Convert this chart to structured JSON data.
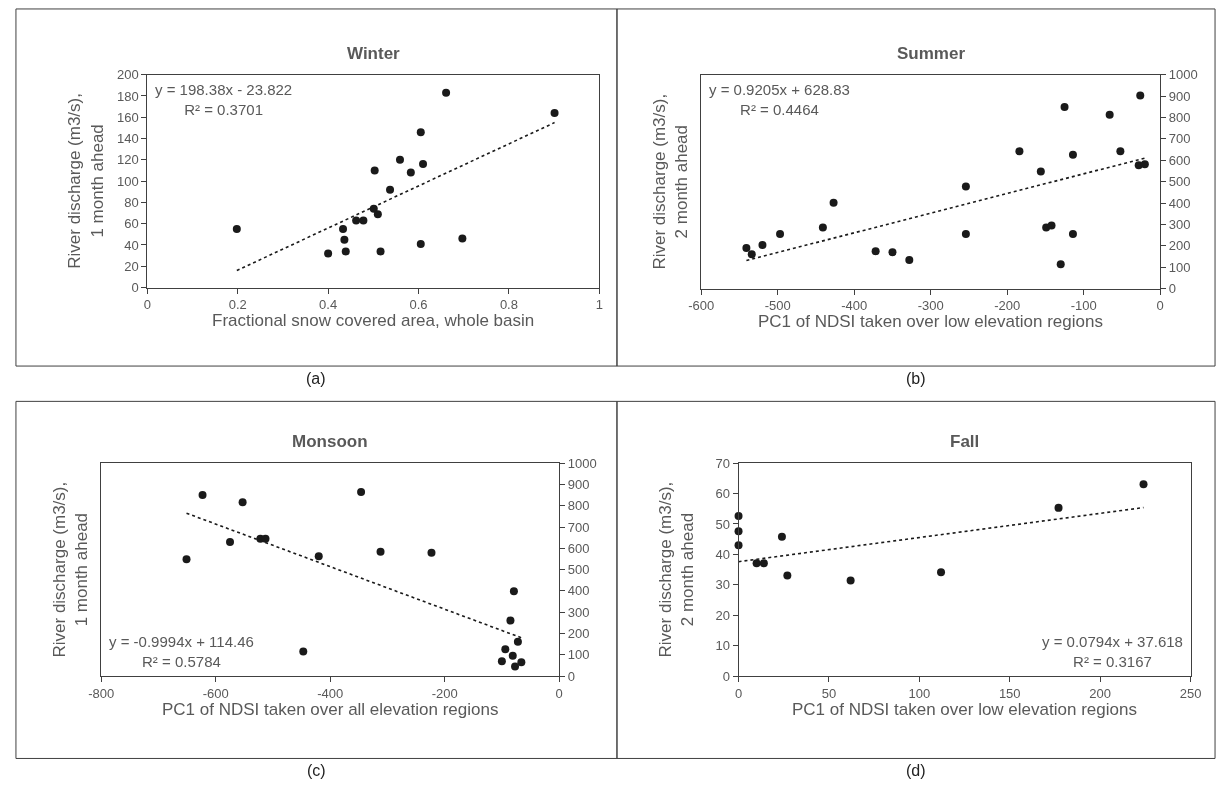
{
  "chart_data": [
    {
      "type": "scatter",
      "title": "Winter",
      "xlabel": "Fractional snow covered area, whole basin",
      "ylabel": "River discharge (m3/s),\n1 month ahead",
      "annotations": [
        "y = 198.38x - 23.822\nR² = 0.3701",
        "(a)"
      ],
      "xlim": [
        0,
        1
      ],
      "xticks": [
        0,
        0.2,
        0.4,
        0.6,
        0.8,
        1
      ],
      "ylim": [
        0,
        200
      ],
      "yticks": [
        0,
        20,
        40,
        60,
        80,
        100,
        120,
        140,
        160,
        180,
        200
      ],
      "series": [
        {
          "marker": "circle",
          "color": "#1a1a1a",
          "x": [
            0.198,
            0.4,
            0.433,
            0.436,
            0.439,
            0.462,
            0.478,
            0.501,
            0.503,
            0.51,
            0.516,
            0.537,
            0.559,
            0.583,
            0.605,
            0.605,
            0.61,
            0.661,
            0.697,
            0.901
          ],
          "values": [
            55,
            32,
            55,
            45,
            34,
            63,
            63,
            74,
            110,
            69,
            34,
            92,
            120,
            108,
            146,
            41,
            116,
            183,
            46,
            164
          ]
        },
        {
          "type": "line",
          "marker": "none",
          "line_style": "dotted",
          "color": "#1a1a1a",
          "x": [
            0.198,
            0.901
          ],
          "values": [
            16,
            155
          ]
        }
      ]
    },
    {
      "type": "scatter",
      "title": "Summer",
      "xlabel": "PC1 of NDSI taken over low elevation regions",
      "ylabel": "River discharge (m3/s),\n2 month ahead",
      "annotations": [
        "y = 0.9205x + 628.83\nR² = 0.4464",
        "(b)"
      ],
      "xlim": [
        -600,
        0
      ],
      "xticks": [
        -600,
        -500,
        -400,
        -300,
        -200,
        -100,
        0
      ],
      "y2lim": [
        0,
        1000
      ],
      "y2ticks": [
        0,
        100,
        200,
        300,
        400,
        500,
        600,
        700,
        800,
        900,
        1000
      ],
      "series": [
        {
          "marker": "circle",
          "axis": "y2",
          "color": "#1a1a1a",
          "x": [
            -541,
            -534,
            -520,
            -497,
            -441,
            -427,
            -372,
            -350,
            -328,
            -254,
            -254,
            -184,
            -156,
            -149,
            -142,
            -130,
            -125,
            -114,
            -114,
            -66,
            -52,
            -26,
            -28,
            -20
          ],
          "values": [
            190,
            160,
            204,
            255,
            285,
            401,
            175,
            170,
            134,
            477,
            255,
            642,
            547,
            285,
            295,
            114,
            849,
            626,
            255,
            813,
            642,
            903,
            577,
            581
          ]
        },
        {
          "type": "line",
          "marker": "none",
          "axis": "y2",
          "line_style": "dotted",
          "color": "#1a1a1a",
          "x": [
            -541,
            -20
          ],
          "values": [
            131,
            610
          ]
        }
      ]
    },
    {
      "type": "scatter",
      "title": "Monsoon",
      "xlabel": "PC1 of NDSI taken over all elevation regions",
      "ylabel": "River discharge (m3/s),\n1 month ahead",
      "annotations": [
        "y = -0.9994x + 114.46\nR² = 0.5784",
        "(c)"
      ],
      "xlim": [
        -800,
        0
      ],
      "xticks": [
        -800,
        -600,
        -400,
        -200,
        0
      ],
      "y2lim": [
        0,
        1000
      ],
      "y2ticks": [
        0,
        100,
        200,
        300,
        400,
        500,
        600,
        700,
        800,
        900,
        1000
      ],
      "series": [
        {
          "marker": "circle",
          "axis": "y2",
          "color": "#1a1a1a",
          "x": [
            -651,
            -623,
            -575,
            -553,
            -522,
            -513,
            -447,
            -420,
            -346,
            -312,
            -223,
            -79,
            -85,
            -72,
            -94,
            -81,
            -100,
            -66,
            -77
          ],
          "values": [
            549,
            851,
            630,
            816,
            645,
            645,
            115,
            563,
            865,
            584,
            579,
            398,
            261,
            161,
            126,
            95,
            70,
            65,
            45
          ]
        },
        {
          "type": "line",
          "marker": "none",
          "axis": "y2",
          "line_style": "dotted",
          "color": "#1a1a1a",
          "x": [
            -651,
            -66
          ],
          "values": [
            765,
            180
          ]
        }
      ]
    },
    {
      "type": "scatter",
      "title": "Fall",
      "xlabel": "PC1 of NDSI taken over low elevation regions",
      "ylabel": "River discharge (m3/s),\n2 month ahead",
      "annotations": [
        "y = 0.0794x + 37.618\nR² = 0.3167",
        "(d)"
      ],
      "xlim": [
        0,
        250
      ],
      "xticks": [
        0,
        50,
        100,
        150,
        200,
        250
      ],
      "ylim": [
        0,
        70
      ],
      "yticks": [
        0,
        10,
        20,
        30,
        40,
        50,
        60,
        70
      ],
      "series": [
        {
          "marker": "circle",
          "color": "#1a1a1a",
          "x": [
            0,
            0,
            0,
            10,
            14,
            24,
            27,
            62,
            112,
            177,
            224
          ],
          "values": [
            52.6,
            47.6,
            43.0,
            37.1,
            37.1,
            45.8,
            33.1,
            31.4,
            34.1,
            55.3,
            63.1
          ]
        },
        {
          "type": "line",
          "marker": "none",
          "line_style": "dotted",
          "color": "#1a1a1a",
          "x": [
            0,
            224
          ],
          "values": [
            37.6,
            55.4
          ]
        }
      ]
    }
  ]
}
